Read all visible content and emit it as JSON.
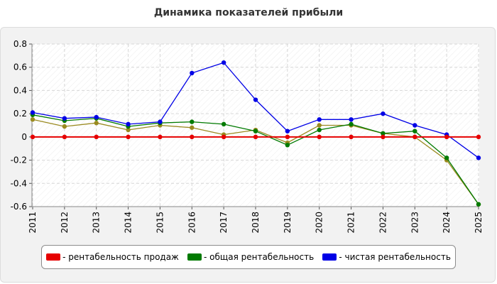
{
  "chart_data": {
    "type": "line",
    "title": "Динамика показателей прибыли",
    "xlabel": "",
    "ylabel": "",
    "categories": [
      "2011",
      "2012",
      "2013",
      "2014",
      "2015",
      "2016",
      "2017",
      "2018",
      "2019",
      "2020",
      "2021",
      "2022",
      "2023",
      "2024",
      "2025"
    ],
    "ylim": [
      -0.6,
      0.8
    ],
    "yticks": [
      "0.8",
      "0.6",
      "0.4",
      "0.2",
      "0",
      "-0.2",
      "-0.4",
      "-0.6"
    ],
    "grid": true,
    "legend_position": "bottom",
    "series": [
      {
        "name": "- рентабельность продаж",
        "color": "#e60000",
        "values": [
          0,
          0,
          0,
          0,
          0,
          0,
          0,
          0,
          0,
          0,
          0,
          0,
          0,
          0,
          0
        ]
      },
      {
        "name": "- общая рентабельность",
        "color": "#007a00",
        "values": [
          0.19,
          0.14,
          0.16,
          0.09,
          0.12,
          0.13,
          0.11,
          0.05,
          -0.07,
          0.06,
          0.11,
          0.03,
          0.05,
          -0.18,
          -0.58
        ]
      },
      {
        "name": "- чистая рентабельность",
        "color": "#0000e6",
        "values": [
          0.21,
          0.16,
          0.17,
          0.11,
          0.13,
          0.55,
          0.64,
          0.32,
          0.05,
          0.15,
          0.15,
          0.2,
          0.1,
          0.02,
          -0.18
        ]
      },
      {
        "name": "",
        "color": "#9a8a20",
        "values": [
          0.15,
          0.09,
          0.12,
          0.06,
          0.1,
          0.08,
          0.02,
          0.06,
          -0.05,
          0.1,
          0.1,
          0.03,
          0.0,
          -0.2,
          -0.58
        ]
      }
    ]
  }
}
